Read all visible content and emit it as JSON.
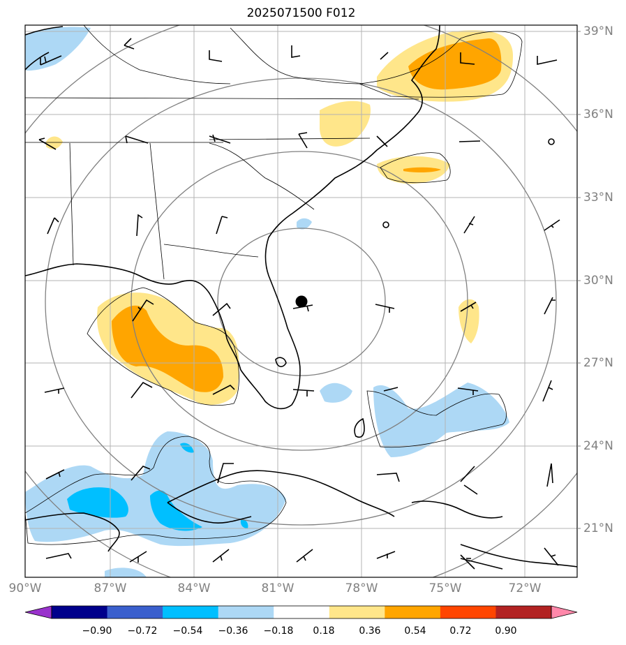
{
  "title": "2025071500 F012",
  "lat_labels": [
    "39°N",
    "36°N",
    "33°N",
    "30°N",
    "27°N",
    "24°N",
    "21°N"
  ],
  "lon_labels": [
    "90°W",
    "87°W",
    "84°W",
    "81°W",
    "78°W",
    "75°W",
    "72°W"
  ],
  "colorbar": {
    "ticks": [
      "−0.90",
      "−0.72",
      "−0.54",
      "−0.36",
      "−0.18",
      "0.18",
      "0.36",
      "0.54",
      "0.72",
      "0.90"
    ],
    "colors": [
      "#9932cc",
      "#00008b",
      "#3a5fcd",
      "#00bfff",
      "#add8f5",
      "#ffffff",
      "#ffe68a",
      "#ffa500",
      "#ff4500",
      "#b22222",
      "#ff88aa"
    ]
  },
  "storm_center_marker": "filled-circle",
  "range_rings": 4
}
